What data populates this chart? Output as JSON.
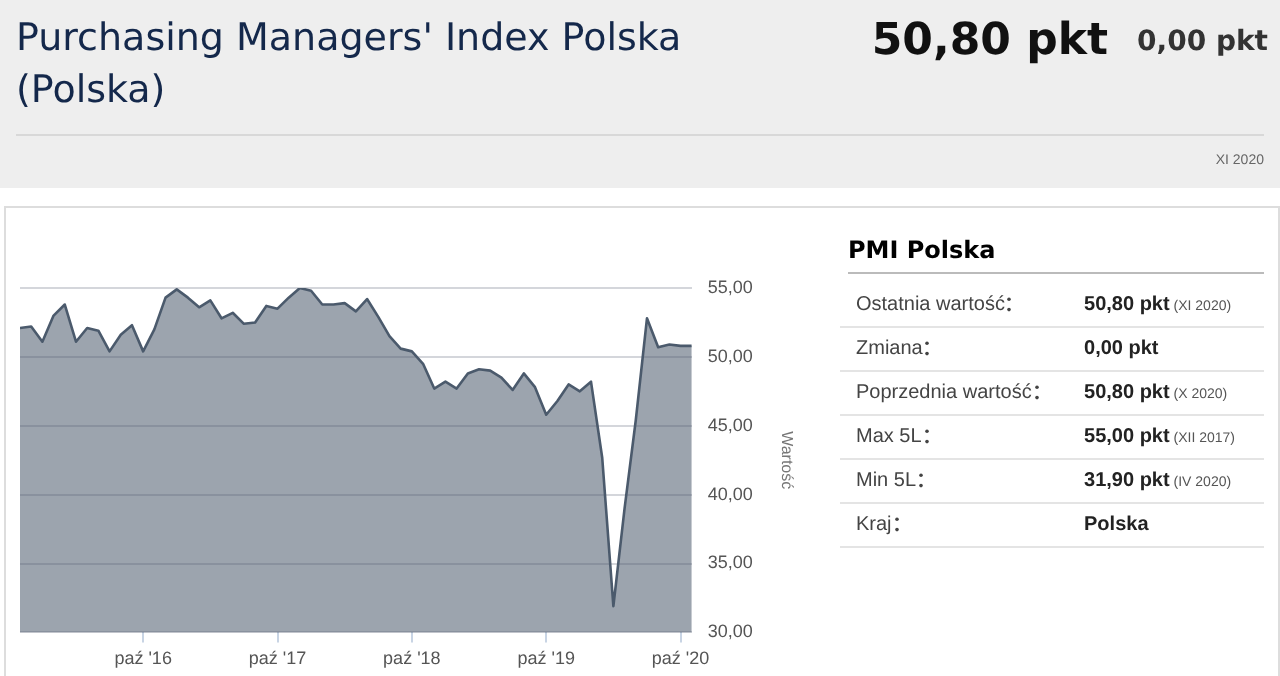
{
  "chart_data": [
    {
      "type": "area",
      "title": "Purchasing Managers' Index Polska (Polska)",
      "annotations": [
        "50,80 pkt",
        "0,00 pkt",
        "XI 2020"
      ],
      "ylabel": "Wartość",
      "x": [
        "2015-11",
        "2015-12",
        "2016-01",
        "2016-02",
        "2016-03",
        "2016-04",
        "2016-05",
        "2016-06",
        "2016-07",
        "2016-08",
        "2016-09",
        "2016-10",
        "2016-11",
        "2016-12",
        "2017-01",
        "2017-02",
        "2017-03",
        "2017-04",
        "2017-05",
        "2017-06",
        "2017-07",
        "2017-08",
        "2017-09",
        "2017-10",
        "2017-11",
        "2017-12",
        "2018-01",
        "2018-02",
        "2018-03",
        "2018-04",
        "2018-05",
        "2018-06",
        "2018-07",
        "2018-08",
        "2018-09",
        "2018-10",
        "2018-11",
        "2018-12",
        "2019-01",
        "2019-02",
        "2019-03",
        "2019-04",
        "2019-05",
        "2019-06",
        "2019-07",
        "2019-08",
        "2019-09",
        "2019-10",
        "2019-11",
        "2019-12",
        "2020-01",
        "2020-02",
        "2020-03",
        "2020-04",
        "2020-05",
        "2020-06",
        "2020-07",
        "2020-08",
        "2020-09",
        "2020-10",
        "2020-11"
      ],
      "values": [
        52.1,
        52.2,
        51.1,
        53.0,
        53.8,
        51.1,
        52.1,
        51.9,
        50.4,
        51.6,
        52.3,
        50.4,
        52.0,
        54.3,
        54.9,
        54.3,
        53.6,
        54.1,
        52.8,
        53.2,
        52.4,
        52.5,
        53.7,
        53.5,
        54.3,
        55.0,
        54.8,
        53.8,
        53.8,
        53.9,
        53.3,
        54.2,
        52.9,
        51.5,
        50.6,
        50.4,
        49.5,
        47.7,
        48.2,
        47.7,
        48.8,
        49.1,
        49.0,
        48.5,
        47.6,
        48.8,
        47.8,
        45.8,
        46.8,
        48.0,
        47.5,
        48.2,
        42.7,
        31.9,
        39.0,
        45.4,
        52.8,
        50.7,
        50.9,
        50.8,
        50.8
      ],
      "color": "#4b5a6c",
      "xlim": [
        "2015-11",
        "2020-11"
      ],
      "xticks": [
        {
          "value": "2016-10",
          "label": "paź '16"
        },
        {
          "value": "2017-10",
          "label": "paź '17"
        },
        {
          "value": "2018-10",
          "label": "paź '18"
        },
        {
          "value": "2019-10",
          "label": "paź '19"
        },
        {
          "value": "2020-10",
          "label": "paź '20"
        }
      ],
      "ylim": [
        30,
        55
      ],
      "yticks": [
        {
          "value": 30,
          "label": "30,00"
        },
        {
          "value": 35,
          "label": "35,00"
        },
        {
          "value": 40,
          "label": "40,00"
        },
        {
          "value": 45,
          "label": "45,00"
        },
        {
          "value": 50,
          "label": "50,00"
        },
        {
          "value": 55,
          "label": "55,00"
        }
      ],
      "grid": "y",
      "legend": false,
      "marker": "none"
    },
    {
      "type": "other",
      "title": "PMI Polska",
      "categories": [
        "Ostatnia wartość",
        "Zmiana",
        "Poprzednia wartość",
        "Max 5L",
        "Min 5L",
        "Kraj"
      ],
      "value_labels": [
        "50,80 pkt",
        "0,00 pkt",
        "50,80 pkt",
        "55,00 pkt",
        "31,90 pkt",
        "Polska"
      ],
      "annotations": [
        "(XI 2020)",
        null,
        "(X 2020)",
        "(XII 2017)",
        "(IV 2020)",
        null
      ]
    }
  ]
}
